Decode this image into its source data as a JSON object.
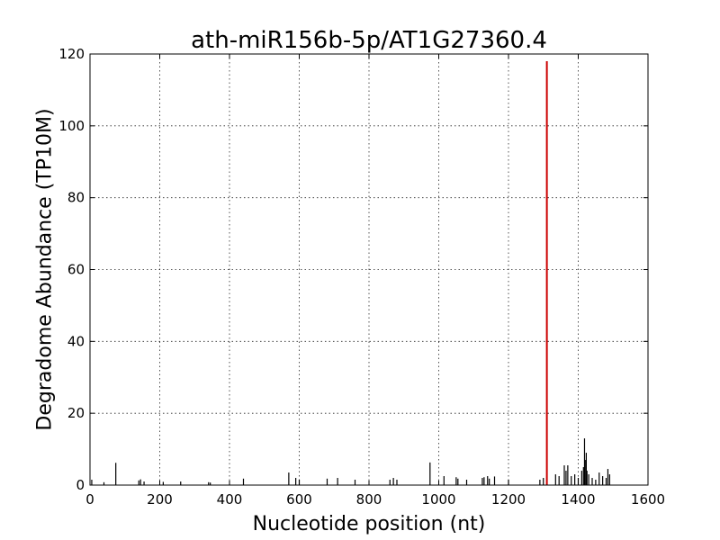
{
  "chart_data": {
    "type": "bar",
    "title": "ath-miR156b-5p/AT1G27360.4",
    "xlabel": "Nucleotide position (nt)",
    "ylabel": "Degradome Abundance (TP10M)",
    "xlim": [
      0,
      1600
    ],
    "ylim": [
      0,
      120
    ],
    "xticks": [
      0,
      200,
      400,
      600,
      800,
      1000,
      1200,
      1400,
      1600
    ],
    "yticks": [
      0,
      20,
      40,
      60,
      80,
      100,
      120
    ],
    "grid": true,
    "colors": {
      "background": "#000000",
      "highlight": "#cc0000"
    },
    "series": [
      {
        "role": "background",
        "x": [
          5,
          40,
          74,
          140,
          145,
          155,
          210,
          260,
          340,
          345,
          440,
          570,
          590,
          600,
          680,
          710,
          760,
          860,
          870,
          880,
          975,
          1015,
          1050,
          1055,
          1080,
          1125,
          1130,
          1140,
          1145,
          1160,
          1200,
          1290,
          1300,
          1335,
          1345,
          1360,
          1365,
          1370,
          1380,
          1390,
          1400,
          1410,
          1415,
          1418,
          1420,
          1423,
          1425,
          1430,
          1440,
          1450,
          1460,
          1470,
          1480,
          1485,
          1490
        ],
        "values": [
          1.5,
          0.8,
          6.2,
          1.3,
          1.6,
          1.0,
          0.9,
          1.0,
          0.8,
          0.7,
          1.8,
          3.5,
          2.0,
          1.5,
          1.8,
          2.0,
          1.5,
          1.5,
          2.0,
          1.5,
          6.3,
          2.5,
          2.2,
          1.8,
          1.5,
          2.0,
          2.2,
          2.5,
          1.8,
          2.4,
          1.5,
          1.5,
          2.0,
          3.0,
          2.5,
          5.5,
          4.0,
          5.5,
          2.5,
          3.0,
          2.0,
          4.0,
          5.0,
          13.0,
          7.0,
          9.0,
          4.0,
          3.0,
          2.0,
          1.5,
          3.5,
          2.5,
          2.0,
          4.5,
          3.0
        ]
      },
      {
        "role": "highlight",
        "x": [
          1310
        ],
        "values": [
          118
        ]
      }
    ]
  }
}
